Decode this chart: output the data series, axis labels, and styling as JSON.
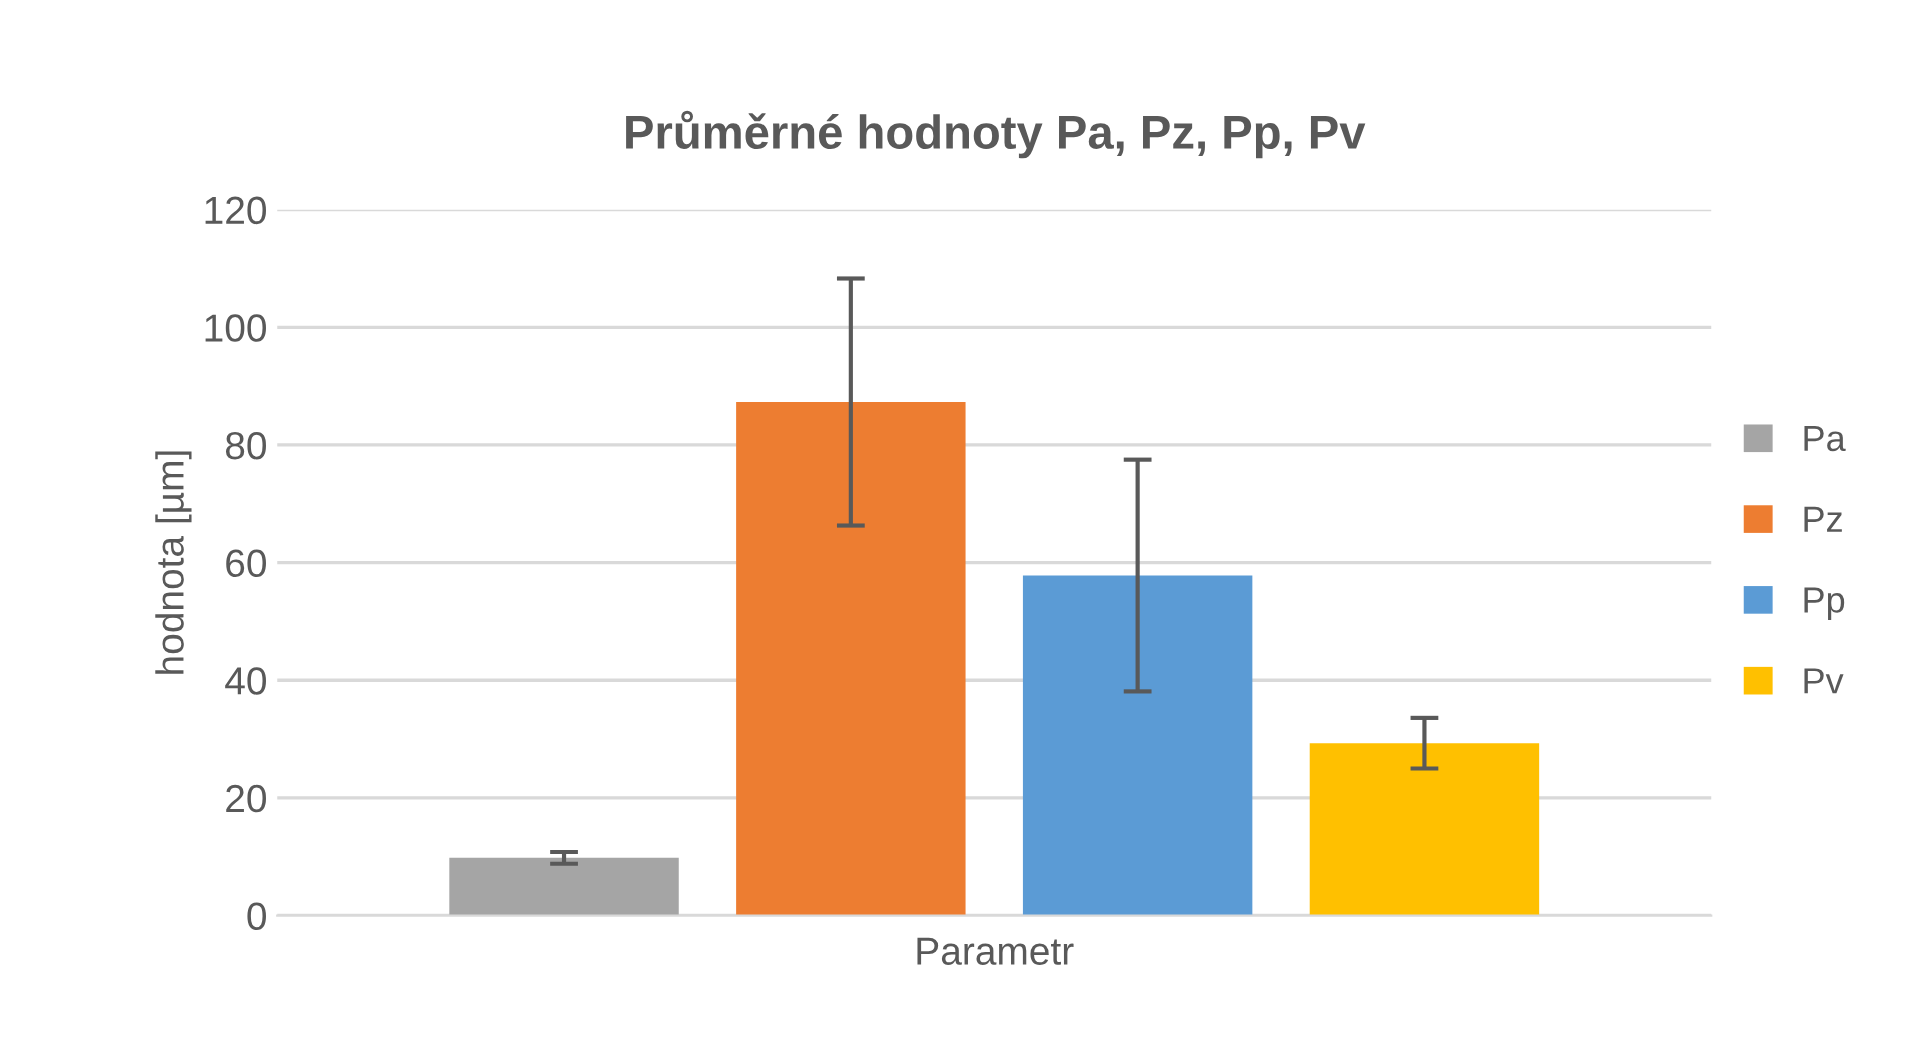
{
  "chart_data": {
    "type": "bar",
    "title": "Průměrné hodnoty Pa, Pz, Pp, Pv",
    "xlabel": "Parametr",
    "ylabel": "hodnota [µm]",
    "categories": [
      null
    ],
    "series": [
      {
        "name": "Pa",
        "color": "#a5a5a5",
        "values": [
          9.8
        ],
        "errors": [
          1
        ]
      },
      {
        "name": "Pz",
        "color": "#ed7d31",
        "values": [
          87.3
        ],
        "errors": [
          21
        ]
      },
      {
        "name": "Pp",
        "color": "#5b9bd5",
        "values": [
          57.8
        ],
        "errors": [
          19.7
        ]
      },
      {
        "name": "Pv",
        "color": "#ffc000",
        "values": [
          29.3
        ],
        "errors": [
          4.3
        ]
      }
    ],
    "ylim": [
      0,
      120
    ],
    "yticks": [
      0,
      20,
      40,
      60,
      80,
      100,
      120
    ],
    "grid": "y",
    "legend": "right"
  }
}
